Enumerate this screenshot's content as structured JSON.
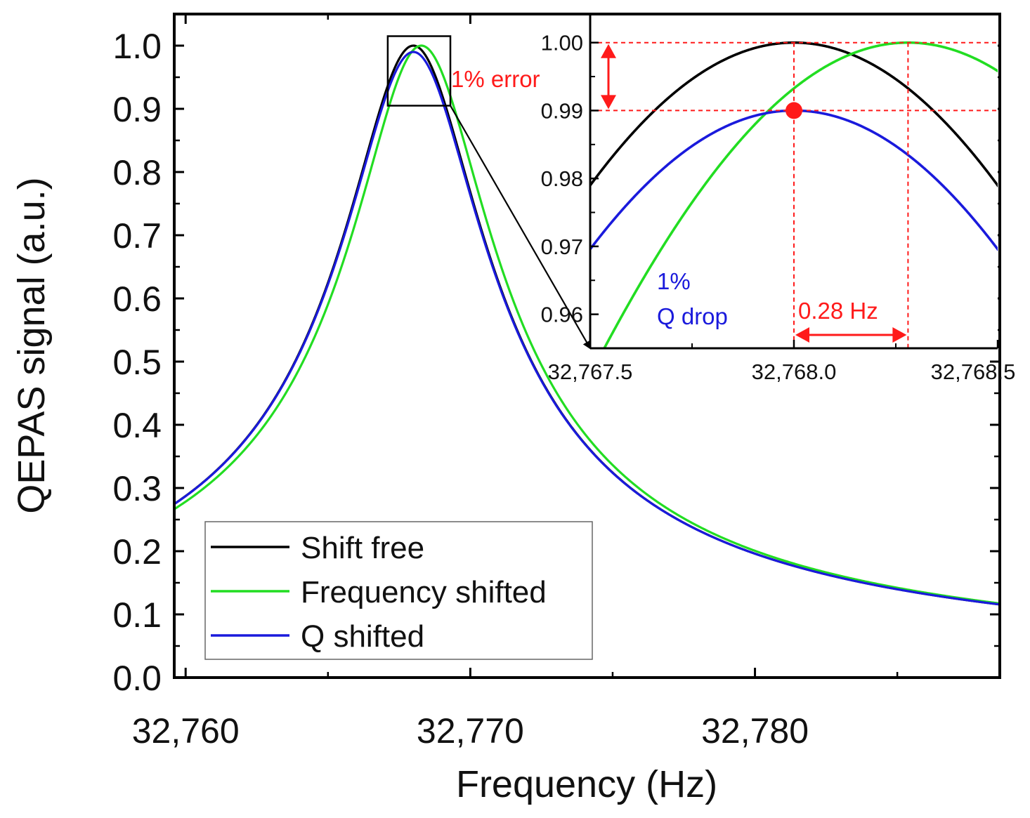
{
  "chart_data": [
    {
      "id": "main",
      "type": "line",
      "title": "",
      "xlabel": "Frequency (Hz)",
      "ylabel": "QEPAS signal (a.u.)",
      "xlim": [
        32759.6,
        32788.6
      ],
      "ylim": [
        0.0,
        1.05
      ],
      "x_ticks": [
        32760,
        32770,
        32780
      ],
      "x_tick_labels": [
        "32,760",
        "32,770",
        "32,780"
      ],
      "x_minor_ticks": [
        32765,
        32775,
        32785
      ],
      "y_ticks": [
        0.0,
        0.1,
        0.2,
        0.3,
        0.4,
        0.5,
        0.6,
        0.7,
        0.8,
        0.9,
        1.0
      ],
      "y_tick_labels": [
        "0.0",
        "0.1",
        "0.2",
        "0.3",
        "0.4",
        "0.5",
        "0.6",
        "0.7",
        "0.8",
        "0.9",
        "1.0"
      ],
      "grid": false,
      "legend": "bottom-left",
      "series": [
        {
          "name": "Shift free",
          "color": "#000000",
          "f0": 32768.0,
          "halfwidth": 2.4,
          "peak": 1.0
        },
        {
          "name": "Frequency shifted",
          "color": "#22dd22",
          "f0": 32768.28,
          "halfwidth": 2.4,
          "peak": 1.0
        },
        {
          "name": "Q shifted",
          "color": "#1a1adc",
          "f0": 32768.0,
          "halfwidth": 2.424,
          "peak": 0.99
        }
      ],
      "zoom_box": {
        "xlim": [
          32767.1,
          32769.3
        ],
        "ylim": [
          0.905,
          1.015
        ]
      }
    },
    {
      "id": "inset",
      "type": "line",
      "xlim": [
        32767.5,
        32768.5
      ],
      "ylim": [
        0.955,
        1.004
      ],
      "x_ticks": [
        32767.5,
        32768.0,
        32768.5
      ],
      "x_tick_labels": [
        "32,767.5",
        "32,768.0",
        "32,768.5"
      ],
      "y_ticks": [
        0.96,
        0.97,
        0.98,
        0.99,
        1.0
      ],
      "y_tick_labels": [
        "0.96",
        "0.97",
        "0.98",
        "0.99",
        "1.00"
      ],
      "marker": {
        "x": 32768.0,
        "y": 0.99,
        "color": "#ff1a1a"
      },
      "annotations": {
        "error_label": "1% error",
        "q_drop_line1": "1%",
        "q_drop_line2": "Q drop",
        "shift_label": "0.28 Hz"
      }
    }
  ],
  "colors": {
    "annotation_red": "#ff1a1a",
    "q_drop_blue": "#1a1adc"
  }
}
